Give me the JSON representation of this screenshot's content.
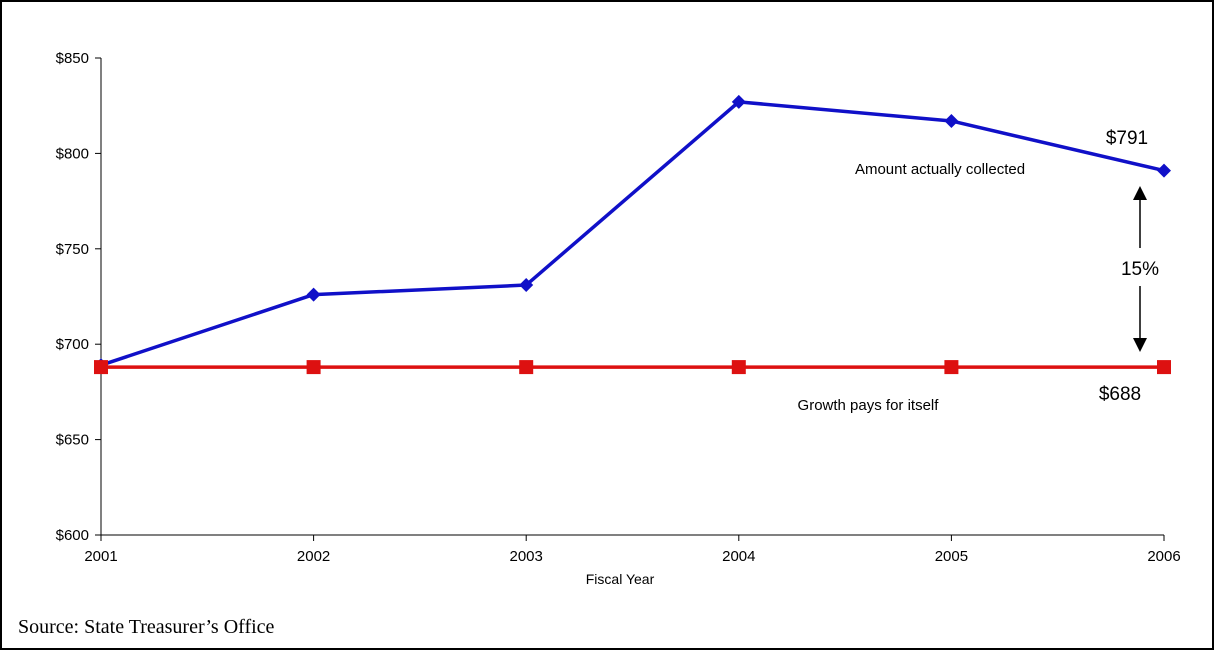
{
  "chart_data": {
    "type": "line",
    "categories": [
      "2001",
      "2002",
      "2003",
      "2004",
      "2005",
      "2006"
    ],
    "series": [
      {
        "values": [
          689,
          726,
          731,
          827,
          817,
          791
        ],
        "color": "#1010c8",
        "marker": "diamond"
      },
      {
        "values": [
          688,
          688,
          688,
          688,
          688,
          688
        ],
        "color": "#dd1111",
        "marker": "square"
      }
    ],
    "y_ticks": [
      "$600",
      "$650",
      "$700",
      "$750",
      "$800",
      "$850"
    ],
    "ylim": [
      600,
      850
    ],
    "xlabel": "Fiscal Year",
    "ylabel": "",
    "grid": false,
    "annotations": {
      "series1_label": "Amount actually collected",
      "series2_label": "Growth pays for itself",
      "end_value_top": "$791",
      "end_value_bottom": "$688",
      "gap_label": "15%"
    }
  },
  "source": "Source: State Treasurer’s Office"
}
